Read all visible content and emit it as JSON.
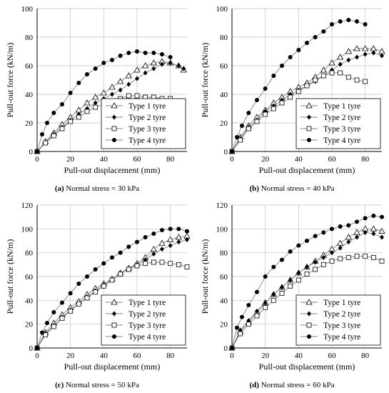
{
  "figure": {
    "series_styles": [
      {
        "name": "Type 1 tyre",
        "marker": "open-triangle"
      },
      {
        "name": "Type 2 tyre",
        "marker": "filled-diamond"
      },
      {
        "name": "Type 3 tyre",
        "marker": "open-square"
      },
      {
        "name": "Type 4 tyre",
        "marker": "filled-circle"
      }
    ],
    "colors": {
      "line": "#808080",
      "marker": "#000000",
      "grid": "#bfbfbf"
    }
  },
  "chart_data": [
    {
      "type": "line",
      "panel_label": "(a)",
      "caption": "Normal stress = 30 kPa",
      "xlabel": "Pull-out displacement (mm)",
      "ylabel": "Pull-out force (kN/m)",
      "xlim": [
        0,
        90
      ],
      "ylim": [
        0,
        100
      ],
      "xticks": [
        0,
        20,
        40,
        60,
        80
      ],
      "yticks": [
        0,
        20,
        40,
        60,
        80,
        100
      ],
      "grid": true,
      "legend_position": "bottom-right",
      "series": [
        {
          "name": "Type 1 tyre",
          "x": [
            0,
            5,
            10,
            15,
            20,
            25,
            30,
            35,
            40,
            45,
            50,
            55,
            60,
            65,
            70,
            75,
            80,
            85,
            88
          ],
          "y": [
            0,
            7,
            13,
            19,
            24,
            29,
            34,
            38,
            41,
            45,
            49,
            53,
            57,
            60,
            62,
            63,
            62,
            60,
            57
          ]
        },
        {
          "name": "Type 2 tyre",
          "x": [
            0,
            5,
            10,
            15,
            20,
            25,
            30,
            35,
            40,
            45,
            50,
            55,
            60,
            65,
            70,
            75,
            80,
            85,
            88
          ],
          "y": [
            0,
            6,
            12,
            17,
            22,
            26,
            30,
            34,
            37,
            40,
            43,
            47,
            51,
            55,
            58,
            61,
            62,
            60,
            58
          ]
        },
        {
          "name": "Type 3 tyre",
          "x": [
            0,
            5,
            10,
            15,
            20,
            25,
            30,
            35,
            40,
            45,
            50,
            55,
            60,
            65,
            70,
            75,
            80
          ],
          "y": [
            0,
            6,
            11,
            16,
            21,
            24,
            28,
            31,
            33,
            35,
            37,
            39,
            39,
            38,
            38,
            37,
            37
          ]
        },
        {
          "name": "Type 4 tyre",
          "x": [
            0,
            3,
            6,
            10,
            15,
            20,
            25,
            30,
            35,
            40,
            45,
            50,
            55,
            60,
            65,
            70,
            75,
            80
          ],
          "y": [
            0,
            12,
            20,
            27,
            33,
            41,
            48,
            54,
            58,
            62,
            64,
            67,
            69,
            70,
            69,
            69,
            68,
            66
          ]
        }
      ]
    },
    {
      "type": "line",
      "panel_label": "(b)",
      "caption": "Normal stress = 40 kPa",
      "xlabel": "Pull-out displacement (mm)",
      "ylabel": "Pull-out force (kN/m)",
      "xlim": [
        0,
        90
      ],
      "ylim": [
        0,
        100
      ],
      "xticks": [
        0,
        20,
        40,
        60,
        80
      ],
      "yticks": [
        0,
        20,
        40,
        60,
        80,
        100
      ],
      "grid": true,
      "legend_position": "bottom-right",
      "series": [
        {
          "name": "Type 1 tyre",
          "x": [
            0,
            5,
            10,
            15,
            20,
            25,
            30,
            35,
            40,
            45,
            50,
            55,
            60,
            65,
            70,
            75,
            80,
            85,
            90
          ],
          "y": [
            0,
            10,
            18,
            24,
            29,
            34,
            38,
            42,
            45,
            48,
            52,
            57,
            62,
            66,
            70,
            72,
            72,
            72,
            70
          ]
        },
        {
          "name": "Type 2 tyre",
          "x": [
            0,
            5,
            10,
            15,
            20,
            25,
            30,
            35,
            40,
            45,
            50,
            55,
            60,
            65,
            70,
            75,
            80,
            85,
            90
          ],
          "y": [
            0,
            9,
            17,
            22,
            28,
            32,
            36,
            40,
            43,
            46,
            49,
            53,
            57,
            61,
            64,
            66,
            68,
            69,
            67
          ]
        },
        {
          "name": "Type 3 tyre",
          "x": [
            0,
            5,
            10,
            15,
            20,
            25,
            30,
            35,
            40,
            45,
            50,
            55,
            60,
            65,
            70,
            75,
            80
          ],
          "y": [
            0,
            8,
            16,
            21,
            26,
            30,
            34,
            38,
            42,
            46,
            50,
            53,
            55,
            55,
            52,
            50,
            49
          ]
        },
        {
          "name": "Type 4 tyre",
          "x": [
            0,
            3,
            6,
            10,
            15,
            20,
            25,
            30,
            35,
            40,
            45,
            50,
            55,
            60,
            65,
            70,
            75,
            80
          ],
          "y": [
            0,
            10,
            18,
            27,
            36,
            44,
            53,
            60,
            66,
            71,
            76,
            80,
            84,
            89,
            91,
            92,
            91,
            89
          ]
        }
      ]
    },
    {
      "type": "line",
      "panel_label": "(c)",
      "caption": "Normal stress = 50 kPa",
      "xlabel": "Pull-out displacement (mm)",
      "ylabel": "Pull-out force (kN/m)",
      "xlim": [
        0,
        90
      ],
      "ylim": [
        0,
        120
      ],
      "xticks": [
        0,
        20,
        40,
        60,
        80
      ],
      "yticks": [
        0,
        20,
        40,
        60,
        80,
        100,
        120
      ],
      "grid": true,
      "legend_position": "bottom-right",
      "series": [
        {
          "name": "Type 1 tyre",
          "x": [
            0,
            5,
            10,
            15,
            20,
            25,
            30,
            35,
            40,
            45,
            50,
            55,
            60,
            65,
            70,
            75,
            80,
            85,
            90
          ],
          "y": [
            0,
            13,
            21,
            28,
            34,
            39,
            45,
            50,
            54,
            58,
            63,
            67,
            71,
            76,
            83,
            88,
            91,
            93,
            94
          ]
        },
        {
          "name": "Type 2 tyre",
          "x": [
            0,
            5,
            10,
            15,
            20,
            25,
            30,
            35,
            40,
            45,
            50,
            55,
            60,
            65,
            70,
            75,
            80,
            85,
            90
          ],
          "y": [
            0,
            12,
            19,
            26,
            32,
            37,
            43,
            48,
            53,
            57,
            62,
            66,
            70,
            74,
            79,
            83,
            86,
            89,
            91
          ]
        },
        {
          "name": "Type 3 tyre",
          "x": [
            0,
            5,
            10,
            15,
            20,
            25,
            30,
            35,
            40,
            45,
            50,
            55,
            60,
            65,
            70,
            75,
            80,
            85,
            90
          ],
          "y": [
            0,
            11,
            18,
            25,
            31,
            37,
            42,
            47,
            52,
            57,
            62,
            66,
            69,
            71,
            72,
            72,
            71,
            70,
            68
          ]
        },
        {
          "name": "Type 4 tyre",
          "x": [
            0,
            3,
            6,
            10,
            15,
            20,
            25,
            30,
            35,
            40,
            45,
            50,
            55,
            60,
            65,
            70,
            75,
            80,
            85,
            90
          ],
          "y": [
            0,
            13,
            21,
            30,
            38,
            46,
            54,
            60,
            66,
            71,
            76,
            80,
            85,
            89,
            93,
            96,
            99,
            100,
            100,
            98
          ]
        }
      ]
    },
    {
      "type": "line",
      "panel_label": "(d)",
      "caption": "Normal stress = 60 kPa",
      "xlabel": "Pull-out displacement (mm)",
      "ylabel": "Pull-out force (kN/m)",
      "xlim": [
        0,
        90
      ],
      "ylim": [
        0,
        120
      ],
      "xticks": [
        0,
        20,
        40,
        60,
        80
      ],
      "yticks": [
        0,
        20,
        40,
        60,
        80,
        100,
        120
      ],
      "grid": true,
      "legend_position": "bottom-right",
      "series": [
        {
          "name": "Type 1 tyre",
          "x": [
            0,
            5,
            10,
            15,
            20,
            25,
            30,
            35,
            40,
            45,
            50,
            55,
            60,
            65,
            70,
            75,
            80,
            85,
            90
          ],
          "y": [
            0,
            14,
            22,
            30,
            38,
            45,
            51,
            57,
            63,
            68,
            73,
            78,
            83,
            88,
            93,
            97,
            100,
            100,
            98
          ]
        },
        {
          "name": "Type 2 tyre",
          "x": [
            0,
            5,
            10,
            15,
            20,
            25,
            30,
            35,
            40,
            45,
            50,
            55,
            60,
            65,
            70,
            75,
            80,
            85,
            90
          ],
          "y": [
            0,
            15,
            23,
            31,
            38,
            45,
            51,
            57,
            63,
            68,
            72,
            76,
            80,
            84,
            89,
            93,
            97,
            96,
            93
          ]
        },
        {
          "name": "Type 3 tyre",
          "x": [
            0,
            5,
            10,
            15,
            20,
            25,
            30,
            35,
            40,
            45,
            50,
            55,
            60,
            65,
            70,
            75,
            80,
            85,
            90
          ],
          "y": [
            0,
            12,
            20,
            27,
            34,
            40,
            46,
            52,
            57,
            62,
            66,
            70,
            73,
            75,
            76,
            77,
            77,
            76,
            73
          ]
        },
        {
          "name": "Type 4 tyre",
          "x": [
            0,
            3,
            6,
            10,
            15,
            20,
            25,
            30,
            35,
            40,
            45,
            50,
            55,
            60,
            65,
            70,
            75,
            80,
            85,
            90
          ],
          "y": [
            0,
            17,
            26,
            36,
            47,
            60,
            68,
            74,
            81,
            86,
            90,
            94,
            97,
            100,
            102,
            103,
            106,
            109,
            111,
            110
          ]
        }
      ]
    }
  ]
}
